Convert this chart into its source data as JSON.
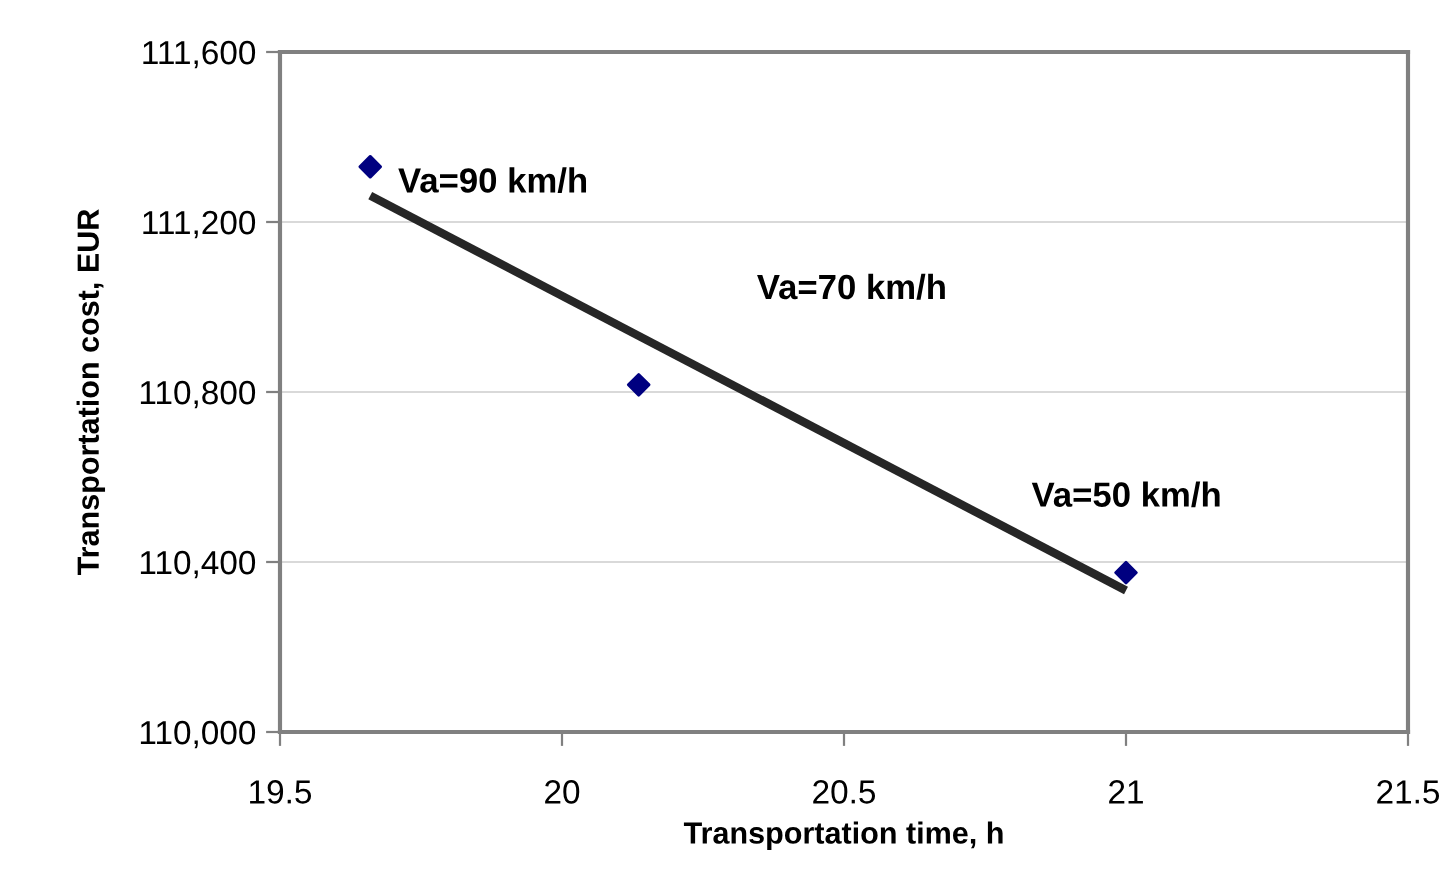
{
  "chart_data": {
    "type": "scatter",
    "xlabel": "Transportation time, h",
    "ylabel": "Transportation cost, EUR",
    "series": [
      {
        "color": "#000080",
        "marker": "diamond",
        "x": [
          19.66,
          20.136,
          21.0
        ],
        "values": [
          111330,
          110817,
          110375
        ]
      },
      {
        "type": "line",
        "color": "#262626",
        "marker": "none",
        "x": [
          19.66,
          21.0
        ],
        "values": [
          111262,
          110333
        ]
      }
    ],
    "annotations": [
      {
        "text": "Va=90 km/h",
        "x": 19.66,
        "y": 111330
      },
      "Va=70 km/h",
      {
        "text": "Va=50 km/h",
        "x": 21.0,
        "y": 110375
      }
    ],
    "xlim": [
      19.5,
      21.5
    ],
    "xticks": [
      19.5,
      20,
      20.5,
      21,
      21.5
    ],
    "ylim": [
      110000,
      111600
    ],
    "yticks": [
      {
        "value": 110000,
        "label": "110,000"
      },
      {
        "value": 110400,
        "label": "110,400"
      },
      {
        "value": 110800,
        "label": "110,800"
      },
      {
        "value": 111200,
        "label": "111,200"
      },
      {
        "value": 111600,
        "label": "111,600"
      }
    ],
    "grid": "y",
    "legend": false
  }
}
